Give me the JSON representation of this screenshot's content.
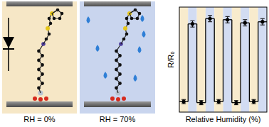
{
  "chart_data": {
    "type": "line",
    "x_label": "Relative Humidity (%)",
    "y_label": "R/R₀",
    "categories": [
      null,
      null,
      null,
      null,
      null,
      null,
      null,
      null,
      null,
      null
    ],
    "series": [
      {
        "color": "#000000",
        "line_style": "step",
        "marker": "circle",
        "values": [
          0.1,
          0.84,
          0.09,
          0.89,
          0.1,
          0.88,
          0.09,
          0.85,
          0.1,
          0.86
        ],
        "errors": [
          0.02,
          0.03,
          0.02,
          0.03,
          0.02,
          0.03,
          0.02,
          0.03,
          0.02,
          0.03
        ]
      }
    ],
    "ylim": [
      0,
      1
    ],
    "tick_labels": false,
    "grid": false
  },
  "schematic": {
    "labels": [
      "RH = 0%",
      "RH = 70%"
    ]
  }
}
